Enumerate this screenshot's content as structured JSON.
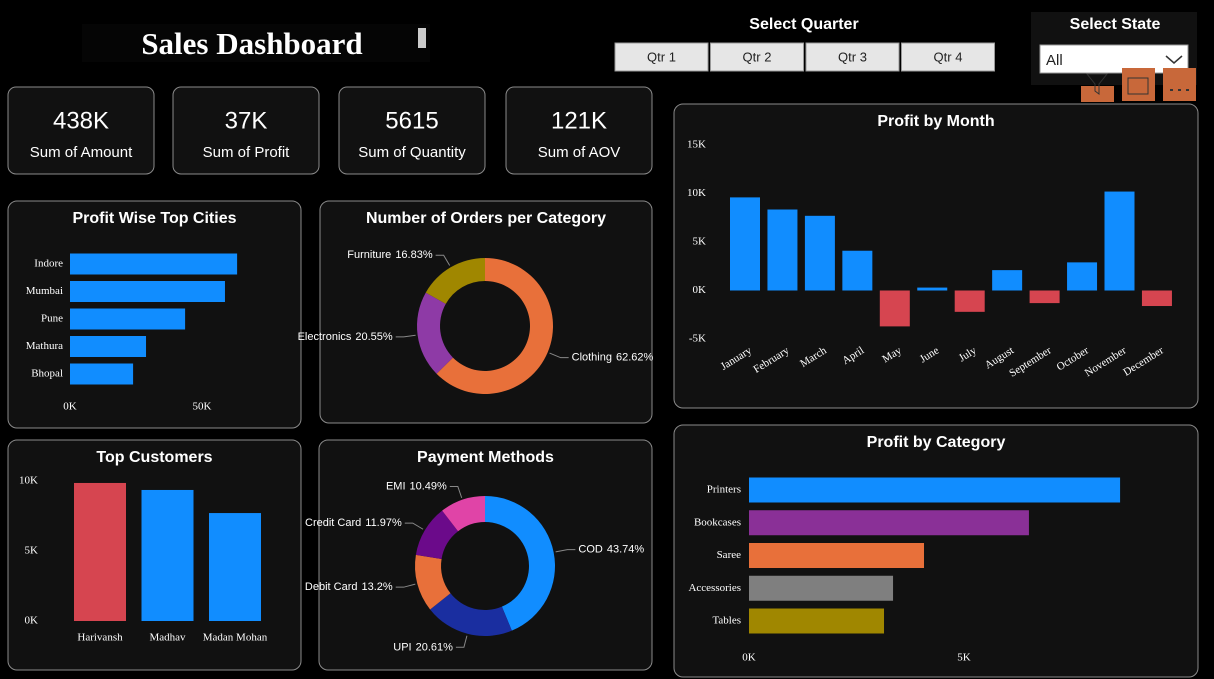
{
  "header": {
    "title": "Sales Dashboard"
  },
  "quarter_slicer": {
    "title": "Select Quarter",
    "options": [
      "Qtr 1",
      "Qtr 2",
      "Qtr 3",
      "Qtr 4"
    ]
  },
  "state_slicer": {
    "title": "Select State",
    "selected": "All"
  },
  "kpis": [
    {
      "value": "438K",
      "label": "Sum of Amount"
    },
    {
      "value": "37K",
      "label": "Sum of Profit"
    },
    {
      "value": "5615",
      "label": "Sum of Quantity"
    },
    {
      "value": "121K",
      "label": "Sum of AOV"
    }
  ],
  "chart_data": [
    {
      "type": "hbar",
      "title": "Profit Wise Top Cities",
      "categories": [
        "Indore",
        "Mumbai",
        "Pune",
        "Mathura",
        "Bhopal"
      ],
      "values": [
        63300,
        58700,
        43600,
        28800,
        23900
      ],
      "color": "#118dff",
      "xlim": [
        0,
        65000
      ],
      "xticks": [
        {
          "value": 0,
          "label": "0K"
        },
        {
          "value": 50000,
          "label": "50K"
        }
      ]
    },
    {
      "type": "donut",
      "title": "Number of Orders per Category",
      "categories": [
        "Clothing",
        "Electronics",
        "Furniture"
      ],
      "values": [
        62.62,
        20.55,
        16.83
      ],
      "value_labels": [
        "62.62%",
        "20.55%",
        "16.83%"
      ],
      "colors": [
        "#e8703a",
        "#8e3aa6",
        "#a08700"
      ]
    },
    {
      "type": "bar",
      "title": "Top Customers",
      "categories": [
        "Harivansh",
        "Madhav",
        "Madan Mohan"
      ],
      "values": [
        9860,
        9360,
        7710
      ],
      "colors": [
        "#d64550",
        "#118dff",
        "#118dff"
      ],
      "ylim": [
        0,
        10000
      ],
      "yticks": [
        {
          "value": 0,
          "label": "0K"
        },
        {
          "value": 5000,
          "label": "5K"
        },
        {
          "value": 10000,
          "label": "10K"
        }
      ]
    },
    {
      "type": "donut",
      "title": "Payment Methods",
      "categories": [
        "COD",
        "UPI",
        "Debit Card",
        "Credit Card",
        "EMI"
      ],
      "values": [
        43.74,
        20.61,
        13.2,
        11.97,
        10.49
      ],
      "value_labels": [
        "43.74%",
        "20.61%",
        "13.2%",
        "11.97%",
        "10.49%"
      ],
      "colors": [
        "#118dff",
        "#1a2ea0",
        "#e8703a",
        "#6b0a8a",
        "#e044a7"
      ]
    },
    {
      "type": "bar",
      "title": "Profit by Month",
      "categories": [
        "January",
        "February",
        "March",
        "April",
        "May",
        "June",
        "July",
        "August",
        "September",
        "October",
        "November",
        "December"
      ],
      "values": [
        9600,
        8350,
        7700,
        4100,
        -3700,
        300,
        -2200,
        2100,
        -1300,
        2900,
        10200,
        -1600
      ],
      "colors": [
        "#118dff",
        "#118dff",
        "#118dff",
        "#118dff",
        "#d64550",
        "#118dff",
        "#d64550",
        "#118dff",
        "#d64550",
        "#118dff",
        "#118dff",
        "#d64550"
      ],
      "ylim": [
        -5000,
        15000
      ],
      "yticks": [
        {
          "value": -5000,
          "label": "-5K"
        },
        {
          "value": 0,
          "label": "0K"
        },
        {
          "value": 5000,
          "label": "5K"
        },
        {
          "value": 10000,
          "label": "10K"
        },
        {
          "value": 15000,
          "label": "15K"
        }
      ]
    },
    {
      "type": "hbar",
      "title": "Profit by Category",
      "categories": [
        "Printers",
        "Bookcases",
        "Saree",
        "Accessories",
        "Tables"
      ],
      "values": [
        8630,
        6510,
        4070,
        3350,
        3140
      ],
      "colors": [
        "#118dff",
        "#8a3097",
        "#e8703a",
        "#7f7f7f",
        "#a08700"
      ],
      "xlim": [
        0,
        10000
      ],
      "xticks": [
        {
          "value": 0,
          "label": "0K"
        },
        {
          "value": 5000,
          "label": "5K"
        }
      ]
    }
  ]
}
